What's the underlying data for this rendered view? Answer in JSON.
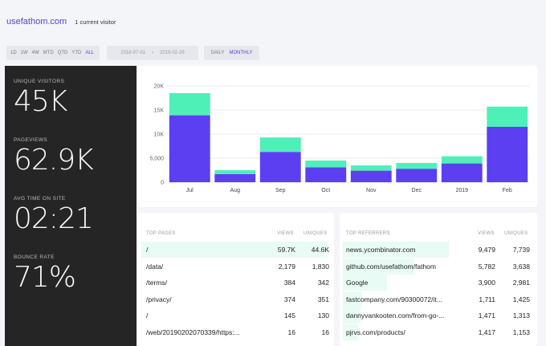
{
  "header": {
    "site": "usefathom.com",
    "current_visitors": "1 current visitor"
  },
  "range": {
    "presets": [
      "1D",
      "1W",
      "4W",
      "MTD",
      "QTD",
      "YTD",
      "ALL"
    ],
    "active_preset": "ALL",
    "start_date": "2018-07-01",
    "separator": "›",
    "end_date": "2019-02-26",
    "intervals": [
      "DAILY",
      "MONTHLY"
    ],
    "active_interval": "MONTHLY"
  },
  "totals": [
    {
      "label": "UNIQUE VISITORS",
      "value": "45K"
    },
    {
      "label": "PAGEVIEWS",
      "value": "62.9K"
    },
    {
      "label": "AVG TIME ON SITE",
      "value": "02:21"
    },
    {
      "label": "BOUNCE RATE",
      "value": "71%"
    }
  ],
  "chart_data": {
    "type": "bar",
    "stacked": true,
    "categories": [
      "Jul",
      "Aug",
      "Sep",
      "Oct",
      "Nov",
      "Dec",
      "2019",
      "Feb"
    ],
    "series": [
      {
        "values": [
          13900,
          1700,
          6300,
          3100,
          2400,
          2800,
          3900,
          11500
        ],
        "color": "#5b3ff0"
      },
      {
        "values": [
          4600,
          800,
          3000,
          1400,
          1100,
          1200,
          1500,
          4200
        ],
        "color": "#4ef0b8"
      }
    ],
    "yticks": [
      "0",
      "5,000",
      "10K",
      "15K",
      "20K"
    ],
    "ylim": [
      0,
      20000
    ],
    "grid": true
  },
  "top_pages": {
    "title": "TOP PAGES",
    "col_views": "VIEWS",
    "col_uniques": "UNIQUES",
    "rows": [
      {
        "name": "/",
        "views": "59.7K",
        "uniques": "44.6K",
        "share": 1.0
      },
      {
        "name": "/data/",
        "views": "2,179",
        "uniques": "1,830",
        "share": 0
      },
      {
        "name": "/terms/",
        "views": "384",
        "uniques": "342",
        "share": 0
      },
      {
        "name": "/privacy/",
        "views": "374",
        "uniques": "351",
        "share": 0
      },
      {
        "name": "/",
        "views": "145",
        "uniques": "130",
        "share": 0
      },
      {
        "name": "/web/20190202070339/https:...",
        "views": "16",
        "uniques": "16",
        "share": 0
      }
    ]
  },
  "top_referrers": {
    "title": "TOP REFERRERS",
    "col_views": "VIEWS",
    "col_uniques": "UNIQUES",
    "rows": [
      {
        "name": "news.ycombinator.com",
        "views": "9,479",
        "uniques": "7,739",
        "share": 0.55
      },
      {
        "name": "github.com/usefathom/fathom",
        "views": "5,782",
        "uniques": "3,638",
        "share": 0.37
      },
      {
        "name": "Google",
        "views": "3,900",
        "uniques": "2,981",
        "share": 0.23
      },
      {
        "name": "fastcompany.com/90300072/it...",
        "views": "1,711",
        "uniques": "1,425",
        "share": 0.1
      },
      {
        "name": "dannyvankooten.com/from-go-...",
        "views": "1,471",
        "uniques": "1,313",
        "share": 0.09
      },
      {
        "name": "pjrvs.com/products/",
        "views": "1,417",
        "uniques": "1,153",
        "share": 0.08
      }
    ]
  }
}
